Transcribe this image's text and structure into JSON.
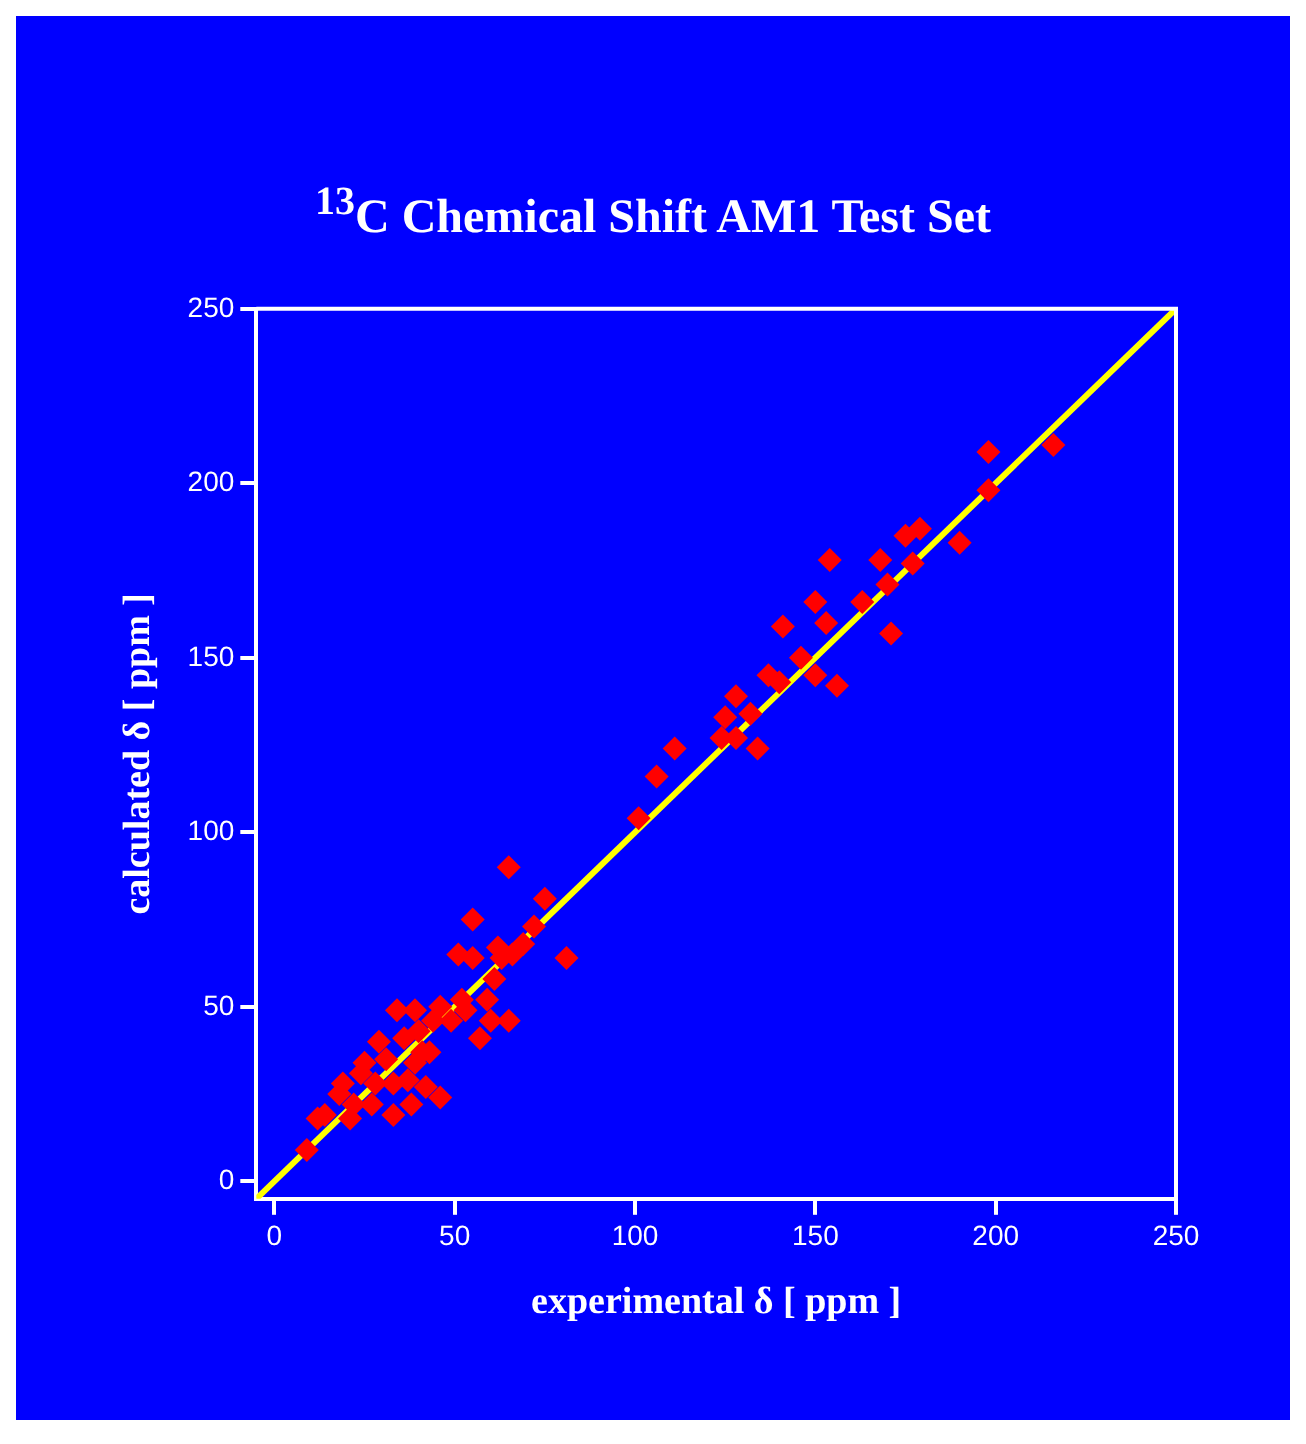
{
  "chart_data": {
    "type": "scatter",
    "title": "$^{13}$C Chemical Shift AM1 Test Set",
    "xlabel": "experimental δ [ ppm ]",
    "ylabel": "calculated δ [ ppm ]",
    "xlim": [
      -5,
      250
    ],
    "ylim": [
      -5,
      250
    ],
    "xticks": [
      0,
      50,
      100,
      150,
      200,
      250
    ],
    "yticks": [
      0,
      50,
      100,
      150,
      200,
      250
    ],
    "grid": false,
    "legend": false,
    "series": [
      {
        "type": "scatter",
        "marker": "diamond",
        "color": "#ff0000",
        "x": [
          9,
          12,
          14,
          18,
          21,
          24,
          28,
          31,
          33,
          36,
          37,
          39,
          41,
          44,
          46,
          43,
          25,
          29,
          34,
          22,
          19,
          27,
          33,
          38,
          42,
          49,
          51,
          55,
          55,
          53,
          57,
          59,
          61,
          63,
          65,
          66,
          65,
          69,
          72,
          75,
          81,
          62,
          60,
          52,
          46,
          40,
          39,
          101,
          106,
          111,
          124,
          128,
          125,
          132,
          134,
          128,
          137,
          140,
          141,
          146,
          150,
          156,
          150,
          153,
          154,
          163,
          168,
          170,
          171,
          175,
          177,
          179,
          190,
          198,
          198,
          216
        ],
        "values": [
          9,
          18,
          19,
          25,
          18,
          31,
          28,
          35,
          19,
          41,
          29,
          34,
          37,
          46,
          24,
          37,
          34,
          40,
          49,
          22,
          28,
          22,
          28,
          22,
          27,
          46,
          65,
          64,
          75,
          49,
          41,
          52,
          58,
          64,
          90,
          65,
          46,
          68,
          73,
          81,
          64,
          67,
          46,
          52,
          50,
          43,
          49,
          104,
          116,
          124,
          127,
          139,
          133,
          134,
          124,
          127,
          145,
          143,
          159,
          150,
          145,
          142,
          166,
          160,
          178,
          166,
          178,
          171,
          157,
          185,
          177,
          187,
          183,
          209,
          198,
          211
        ]
      },
      {
        "type": "line",
        "marker": "none",
        "line_style": "solid",
        "color": "#ffff00",
        "x": [
          -5,
          250
        ],
        "values": [
          -5,
          250
        ]
      }
    ]
  }
}
